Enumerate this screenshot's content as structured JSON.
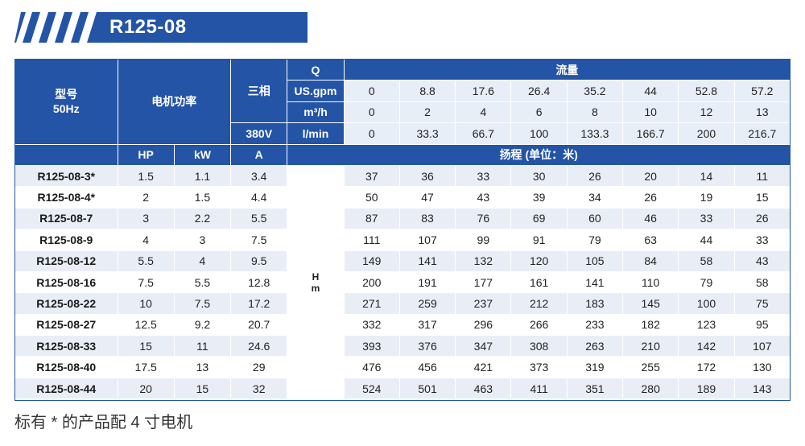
{
  "title": "R125-08",
  "header": {
    "model_label_line1": "型号",
    "model_label_line2": "50Hz",
    "motor_power": "电机功率",
    "three_phase": "三相",
    "voltage": "380V",
    "q": "Q",
    "flow": "流量",
    "flow_units": [
      "US.gpm",
      "m³/h",
      "l/min"
    ],
    "hp": "HP",
    "kw": "kW",
    "amp": "A",
    "head": "扬程 (单位：米)",
    "h_line1": "H",
    "h_line2": "m"
  },
  "flow_rows": [
    [
      "0",
      "8.8",
      "17.6",
      "26.4",
      "35.2",
      "44",
      "52.8",
      "57.2"
    ],
    [
      "0",
      "2",
      "4",
      "6",
      "8",
      "10",
      "12",
      "13"
    ],
    [
      "0",
      "33.3",
      "66.7",
      "100",
      "133.3",
      "166.7",
      "200",
      "216.7"
    ]
  ],
  "rows": [
    {
      "model": "R125-08-3*",
      "hp": "1.5",
      "kw": "1.1",
      "a": "3.4",
      "heads": [
        "37",
        "36",
        "33",
        "30",
        "26",
        "20",
        "14",
        "11"
      ]
    },
    {
      "model": "R125-08-4*",
      "hp": "2",
      "kw": "1.5",
      "a": "4.4",
      "heads": [
        "50",
        "47",
        "43",
        "39",
        "34",
        "26",
        "19",
        "15"
      ]
    },
    {
      "model": "R125-08-7",
      "hp": "3",
      "kw": "2.2",
      "a": "5.5",
      "heads": [
        "87",
        "83",
        "76",
        "69",
        "60",
        "46",
        "33",
        "26"
      ]
    },
    {
      "model": "R125-08-9",
      "hp": "4",
      "kw": "3",
      "a": "7.5",
      "heads": [
        "111",
        "107",
        "99",
        "91",
        "79",
        "63",
        "44",
        "33"
      ]
    },
    {
      "model": "R125-08-12",
      "hp": "5.5",
      "kw": "4",
      "a": "9.5",
      "heads": [
        "149",
        "141",
        "132",
        "120",
        "105",
        "84",
        "58",
        "43"
      ]
    },
    {
      "model": "R125-08-16",
      "hp": "7.5",
      "kw": "5.5",
      "a": "12.8",
      "heads": [
        "200",
        "191",
        "177",
        "161",
        "141",
        "110",
        "79",
        "58"
      ]
    },
    {
      "model": "R125-08-22",
      "hp": "10",
      "kw": "7.5",
      "a": "17.2",
      "heads": [
        "271",
        "259",
        "237",
        "212",
        "183",
        "145",
        "100",
        "75"
      ]
    },
    {
      "model": "R125-08-27",
      "hp": "12.5",
      "kw": "9.2",
      "a": "20.7",
      "heads": [
        "332",
        "317",
        "296",
        "266",
        "233",
        "182",
        "123",
        "95"
      ]
    },
    {
      "model": "R125-08-33",
      "hp": "15",
      "kw": "11",
      "a": "24.6",
      "heads": [
        "393",
        "376",
        "347",
        "308",
        "263",
        "210",
        "142",
        "107"
      ]
    },
    {
      "model": "R125-08-40",
      "hp": "17.5",
      "kw": "13",
      "a": "29",
      "heads": [
        "476",
        "456",
        "421",
        "373",
        "319",
        "255",
        "172",
        "130"
      ]
    },
    {
      "model": "R125-08-44",
      "hp": "20",
      "kw": "15",
      "a": "32",
      "heads": [
        "524",
        "501",
        "463",
        "411",
        "351",
        "280",
        "189",
        "143"
      ]
    }
  ],
  "note": "标有 * 的产品配 4 寸电机",
  "colors": {
    "primary": "#2454a6",
    "row_stripe": "#e9eef6",
    "text": "#222222"
  }
}
